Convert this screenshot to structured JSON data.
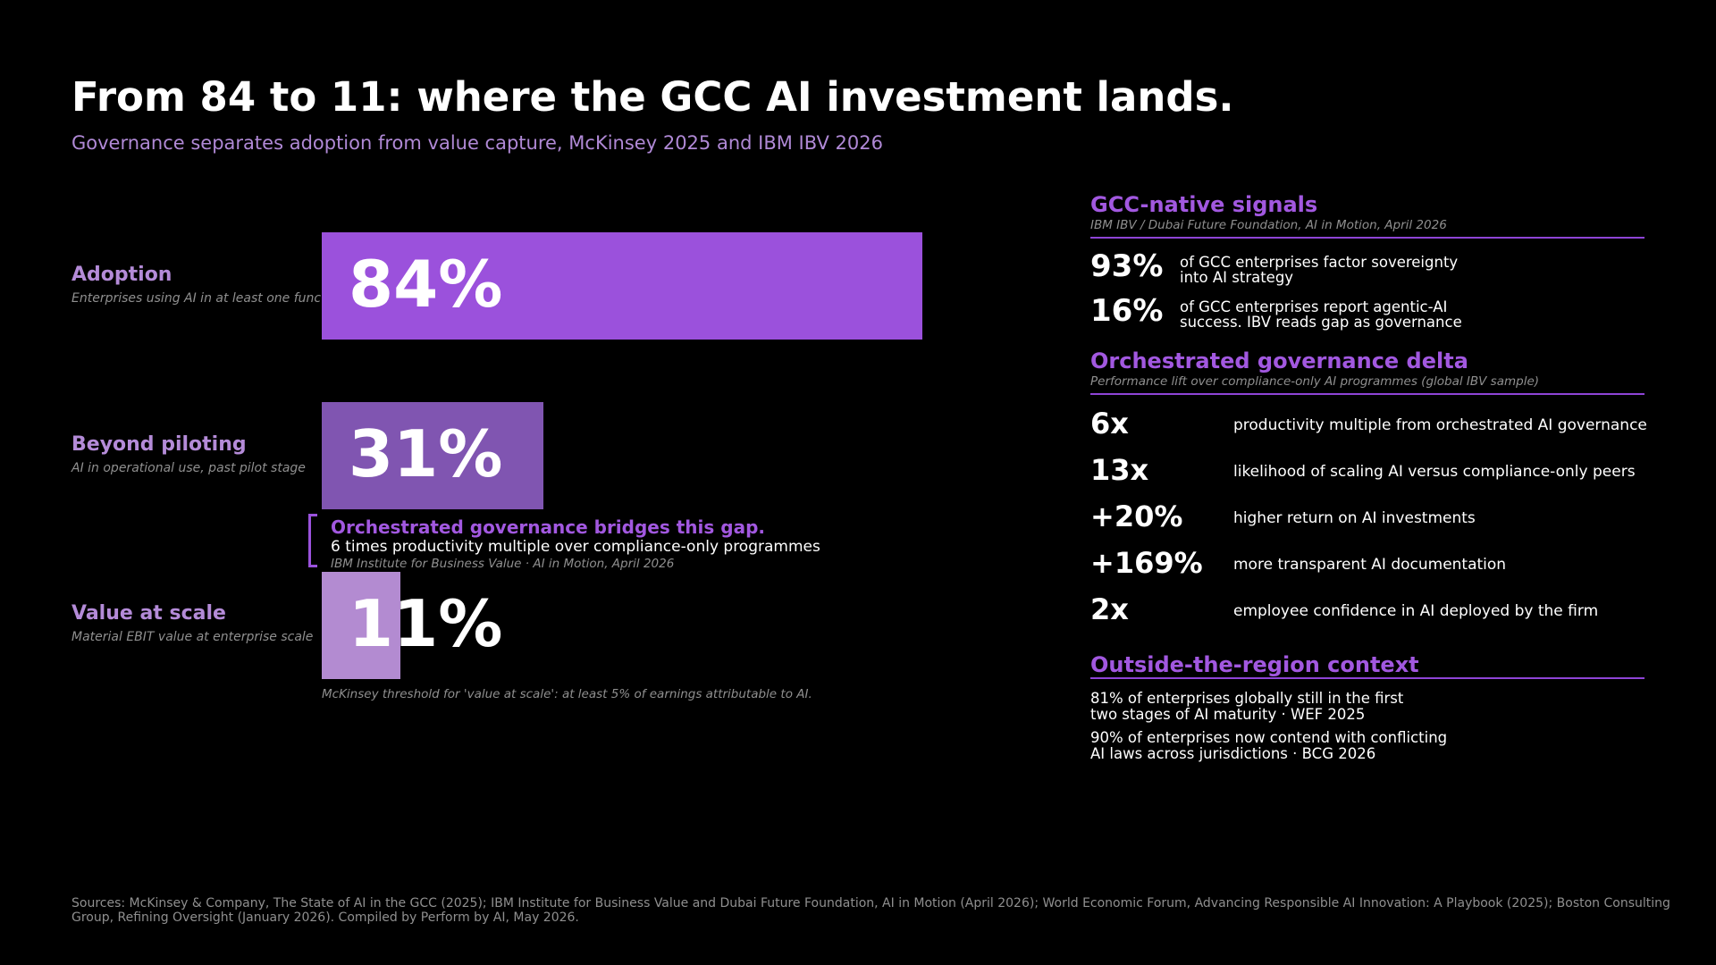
{
  "title": "From 84 to 11: where the GCC AI investment lands.",
  "subtitle": "Governance separates adoption from value capture, McKinsey 2025 and IBM IBV 2026",
  "chart_data": {
    "type": "bar",
    "orientation": "horizontal",
    "categories": [
      "Adoption",
      "Beyond piloting",
      "Value at scale"
    ],
    "category_descriptions": [
      "Enterprises using AI in at least one function",
      "AI in operational use, past pilot stage",
      "Material EBIT value at enterprise scale"
    ],
    "values": [
      84,
      31,
      11
    ],
    "value_labels": [
      "84%",
      "31%",
      "11%"
    ],
    "unit": "%",
    "xlim": [
      0,
      100
    ],
    "colors": [
      "#9b51dc",
      "#8055b1",
      "#b38bd1"
    ],
    "annotation": {
      "title": "Orchestrated governance bridges this gap.",
      "text": "6 times productivity multiple over compliance-only programmes",
      "source": "IBM Institute for Business Value  ·  AI in Motion, April 2026"
    },
    "footnote": "McKinsey threshold for 'value at scale':  at least 5% of earnings attributable to AI."
  },
  "panel": {
    "signals": {
      "title": "GCC-native signals",
      "source": "IBM IBV / Dubai Future Foundation, AI in Motion, April 2026",
      "items": [
        {
          "value": "93%",
          "line1": "of GCC enterprises factor sovereignty",
          "line2": "into AI strategy"
        },
        {
          "value": "16%",
          "line1": "of GCC enterprises report agentic-AI",
          "line2": "success.  IBV reads gap as governance"
        }
      ]
    },
    "delta": {
      "title": "Orchestrated governance delta",
      "source": "Performance lift over compliance-only AI programmes (global IBV sample)",
      "items": [
        {
          "value": "6x",
          "text": "productivity multiple from orchestrated AI governance"
        },
        {
          "value": "13x",
          "text": "likelihood of scaling AI versus compliance-only peers"
        },
        {
          "value": "+20%",
          "text": "higher return on AI investments"
        },
        {
          "value": "+169%",
          "text": "more transparent AI documentation"
        },
        {
          "value": "2x",
          "text": "employee confidence in AI deployed by the firm"
        }
      ]
    },
    "context": {
      "title": "Outside-the-region context",
      "items": [
        {
          "line1": "81% of enterprises globally still in the first",
          "line2": "two stages of AI maturity  ·  WEF 2025"
        },
        {
          "line1": "90% of enterprises now contend with conflicting",
          "line2": "AI laws across jurisdictions  ·  BCG 2026"
        }
      ]
    }
  },
  "sources": "Sources: McKinsey & Company, The State of AI in the GCC (2025); IBM Institute for Business Value and Dubai Future Foundation, AI in Motion (April 2026); World Economic Forum, Advancing Responsible AI Innovation: A Playbook (2025); Boston Consulting Group, Refining Oversight (January 2026). Compiled by Perform by AI, May 2026."
}
